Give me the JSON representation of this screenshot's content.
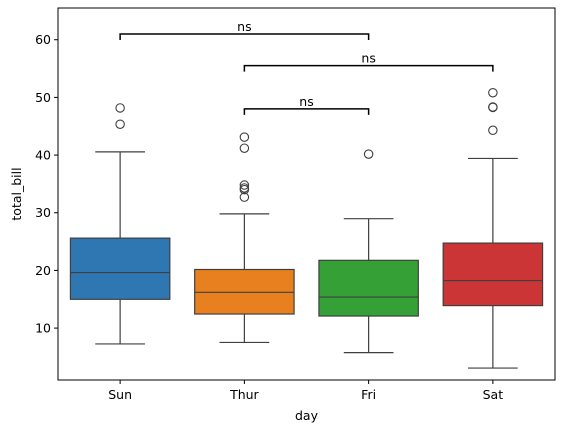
{
  "chart_data": {
    "type": "box",
    "title": "",
    "xlabel": "day",
    "ylabel": "total_bill",
    "categories": [
      "Sun",
      "Thur",
      "Fri",
      "Sat"
    ],
    "ylim": [
      1,
      65.5
    ],
    "yticks": [
      10,
      20,
      30,
      40,
      50,
      60
    ],
    "grid": false,
    "legend": "none",
    "boxes": [
      {
        "category": "Sun",
        "color": "#2f77b3",
        "whisker_low": 7.25,
        "q1": 14.99,
        "median": 19.63,
        "q3": 25.6,
        "whisker_high": 40.55,
        "outliers": [
          45.35,
          48.17
        ]
      },
      {
        "category": "Thur",
        "color": "#e98020",
        "whisker_low": 7.51,
        "q1": 12.44,
        "median": 16.2,
        "q3": 20.16,
        "whisker_high": 29.8,
        "outliers": [
          32.7,
          34.0,
          34.3,
          34.8,
          41.19,
          43.11
        ]
      },
      {
        "category": "Fri",
        "color": "#35a035",
        "whisker_low": 5.75,
        "q1": 12.09,
        "median": 15.38,
        "q3": 21.75,
        "whisker_high": 28.97,
        "outliers": [
          40.17
        ]
      },
      {
        "category": "Sat",
        "color": "#cc3535",
        "whisker_low": 3.07,
        "q1": 13.9,
        "median": 18.24,
        "q3": 24.74,
        "whisker_high": 39.42,
        "outliers": [
          44.3,
          48.27,
          48.33,
          50.81
        ]
      }
    ],
    "annotations": [
      {
        "from": "Sun",
        "to": "Fri",
        "y": 61.0,
        "text": "ns"
      },
      {
        "from": "Thur",
        "to": "Sat",
        "y": 55.5,
        "text": "ns"
      },
      {
        "from": "Thur",
        "to": "Fri",
        "y": 48.0,
        "text": "ns"
      }
    ]
  }
}
